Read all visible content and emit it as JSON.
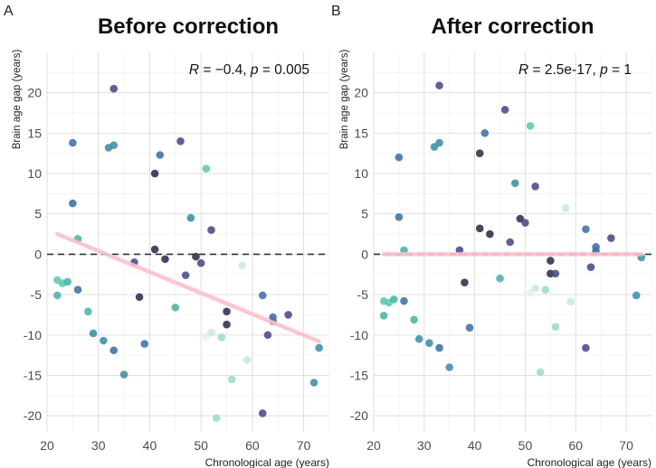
{
  "chart_data": [
    {
      "type": "scatter",
      "panel_label": "A",
      "title": "Before correction",
      "annotation": {
        "r_symbol": "R",
        "r_value": " = −0.4, ",
        "p_symbol": "p",
        "p_value": " = 0.005"
      },
      "xlabel": "Chronological age (years)",
      "ylabel": "Brain age gap (years)",
      "xlim": [
        20,
        75
      ],
      "ylim": [
        -22,
        25
      ],
      "xticks": [
        "20",
        "30",
        "40",
        "50",
        "60",
        "70"
      ],
      "yticks": [
        "-20",
        "-15",
        "-10",
        "-5",
        "0",
        "5",
        "10",
        "15",
        "20"
      ],
      "reference_line_y": 0,
      "fit_line": {
        "x": [
          22,
          73
        ],
        "y": [
          2.5,
          -10.8
        ],
        "color": "#f9c0cc"
      },
      "points": [
        {
          "x": 22,
          "y": -3.2,
          "color": "#5ec9b0"
        },
        {
          "x": 22,
          "y": -5.1,
          "color": "#4cb3a8"
        },
        {
          "x": 23,
          "y": -3.6,
          "color": "#5ec9b0"
        },
        {
          "x": 24,
          "y": -3.4,
          "color": "#4cb3a8"
        },
        {
          "x": 25,
          "y": 13.8,
          "color": "#3d6fa8"
        },
        {
          "x": 25,
          "y": 6.3,
          "color": "#3d6fa8"
        },
        {
          "x": 26,
          "y": 1.9,
          "color": "#4cb3a8"
        },
        {
          "x": 26,
          "y": -4.4,
          "color": "#3d6fa8"
        },
        {
          "x": 28,
          "y": -7.1,
          "color": "#4cb3a8"
        },
        {
          "x": 29,
          "y": -9.8,
          "color": "#3d8ea8"
        },
        {
          "x": 31,
          "y": -10.7,
          "color": "#3d8ea8"
        },
        {
          "x": 32,
          "y": 13.2,
          "color": "#3d8ea8"
        },
        {
          "x": 33,
          "y": 13.5,
          "color": "#3d8ea8"
        },
        {
          "x": 33,
          "y": 20.5,
          "color": "#4a4a8a"
        },
        {
          "x": 33,
          "y": -11.9,
          "color": "#3d6fa8"
        },
        {
          "x": 35,
          "y": -14.9,
          "color": "#3d8ea8"
        },
        {
          "x": 37,
          "y": -1.0,
          "color": "#4a4a8a"
        },
        {
          "x": 38,
          "y": -5.3,
          "color": "#2e2e4a"
        },
        {
          "x": 39,
          "y": -11.1,
          "color": "#3d6fa8"
        },
        {
          "x": 41,
          "y": 10.0,
          "color": "#2e2e4a"
        },
        {
          "x": 41,
          "y": 0.6,
          "color": "#2e2e4a"
        },
        {
          "x": 42,
          "y": 12.3,
          "color": "#3d6fa8"
        },
        {
          "x": 43,
          "y": -0.6,
          "color": "#2e2e4a"
        },
        {
          "x": 45,
          "y": -6.6,
          "color": "#4cb3a8"
        },
        {
          "x": 46,
          "y": 14.0,
          "color": "#4a4a8a"
        },
        {
          "x": 47,
          "y": -2.6,
          "color": "#4a4a8a"
        },
        {
          "x": 48,
          "y": 4.5,
          "color": "#3d8ea8"
        },
        {
          "x": 49,
          "y": -0.3,
          "color": "#2e2e4a"
        },
        {
          "x": 50,
          "y": -1.1,
          "color": "#4a4a8a"
        },
        {
          "x": 51,
          "y": 10.6,
          "color": "#5ec9b0"
        },
        {
          "x": 51,
          "y": -10.2,
          "color": "#e3f3e6"
        },
        {
          "x": 52,
          "y": 3.0,
          "color": "#4a4a8a"
        },
        {
          "x": 52,
          "y": -9.7,
          "color": "#c9ecdb"
        },
        {
          "x": 53,
          "y": -20.3,
          "color": "#9fdcc4"
        },
        {
          "x": 54,
          "y": -10.3,
          "color": "#9fdcc4"
        },
        {
          "x": 55,
          "y": -7.1,
          "color": "#2e2e4a"
        },
        {
          "x": 55,
          "y": -8.7,
          "color": "#2e2e4a"
        },
        {
          "x": 56,
          "y": -15.5,
          "color": "#9fdcc4"
        },
        {
          "x": 58,
          "y": -1.4,
          "color": "#c9ecdb"
        },
        {
          "x": 59,
          "y": -13.1,
          "color": "#c9ecdb"
        },
        {
          "x": 62,
          "y": -5.1,
          "color": "#3d6fa8"
        },
        {
          "x": 62,
          "y": -19.7,
          "color": "#4a4a8a"
        },
        {
          "x": 63,
          "y": -10.0,
          "color": "#4a4a8a"
        },
        {
          "x": 64,
          "y": -7.8,
          "color": "#3d6fa8"
        },
        {
          "x": 64,
          "y": -8.3,
          "color": "#3d6fa8"
        },
        {
          "x": 67,
          "y": -7.5,
          "color": "#4a4a8a"
        },
        {
          "x": 72,
          "y": -15.9,
          "color": "#3d8ea8"
        },
        {
          "x": 73,
          "y": -11.6,
          "color": "#3d8ea8"
        }
      ]
    },
    {
      "type": "scatter",
      "panel_label": "B",
      "title": "After correction",
      "annotation": {
        "r_symbol": "R",
        "r_value": " = 2.5e-17, ",
        "p_symbol": "p",
        "p_value": " = 1"
      },
      "xlabel": "Chronological age (years)",
      "ylabel": "Brain age gap (years)",
      "xlim": [
        20,
        75
      ],
      "ylim": [
        -22,
        25
      ],
      "xticks": [
        "20",
        "30",
        "40",
        "50",
        "60",
        "70"
      ],
      "yticks": [
        "-20",
        "-15",
        "-10",
        "-5",
        "0",
        "5",
        "10",
        "15",
        "20"
      ],
      "reference_line_y": 0,
      "fit_line": {
        "x": [
          22,
          73
        ],
        "y": [
          0,
          0
        ],
        "color": "#f9c0cc"
      },
      "points": [
        {
          "x": 22,
          "y": -5.8,
          "color": "#5ec9b0"
        },
        {
          "x": 22,
          "y": -7.6,
          "color": "#4cb3a8"
        },
        {
          "x": 23,
          "y": -6.0,
          "color": "#5ec9b0"
        },
        {
          "x": 24,
          "y": -5.6,
          "color": "#4cb3a8"
        },
        {
          "x": 25,
          "y": 12.0,
          "color": "#3d6fa8"
        },
        {
          "x": 25,
          "y": 4.6,
          "color": "#3d6fa8"
        },
        {
          "x": 26,
          "y": 0.5,
          "color": "#4cb3a8"
        },
        {
          "x": 26,
          "y": -5.8,
          "color": "#3d6fa8"
        },
        {
          "x": 28,
          "y": -8.1,
          "color": "#4cb3a8"
        },
        {
          "x": 29,
          "y": -10.5,
          "color": "#3d8ea8"
        },
        {
          "x": 31,
          "y": -11.0,
          "color": "#3d8ea8"
        },
        {
          "x": 32,
          "y": 13.3,
          "color": "#3d8ea8"
        },
        {
          "x": 33,
          "y": 13.8,
          "color": "#3d8ea8"
        },
        {
          "x": 33,
          "y": 20.9,
          "color": "#4a4a8a"
        },
        {
          "x": 33,
          "y": -11.6,
          "color": "#3d6fa8"
        },
        {
          "x": 35,
          "y": -14.0,
          "color": "#3d8ea8"
        },
        {
          "x": 37,
          "y": 0.5,
          "color": "#4a4a8a"
        },
        {
          "x": 38,
          "y": -3.5,
          "color": "#2e2e4a"
        },
        {
          "x": 39,
          "y": -9.1,
          "color": "#3d6fa8"
        },
        {
          "x": 41,
          "y": 12.5,
          "color": "#2e2e4a"
        },
        {
          "x": 41,
          "y": 3.2,
          "color": "#2e2e4a"
        },
        {
          "x": 42,
          "y": 15.0,
          "color": "#3d6fa8"
        },
        {
          "x": 43,
          "y": 2.5,
          "color": "#2e2e4a"
        },
        {
          "x": 45,
          "y": -3.0,
          "color": "#4cb3a8"
        },
        {
          "x": 46,
          "y": 17.9,
          "color": "#4a4a8a"
        },
        {
          "x": 47,
          "y": 1.5,
          "color": "#4a4a8a"
        },
        {
          "x": 48,
          "y": 8.8,
          "color": "#3d8ea8"
        },
        {
          "x": 49,
          "y": 4.4,
          "color": "#2e2e4a"
        },
        {
          "x": 50,
          "y": 3.9,
          "color": "#4a4a8a"
        },
        {
          "x": 51,
          "y": 15.9,
          "color": "#5ec9b0"
        },
        {
          "x": 51,
          "y": -4.8,
          "color": "#e3f3e6"
        },
        {
          "x": 52,
          "y": 8.4,
          "color": "#4a4a8a"
        },
        {
          "x": 52,
          "y": -4.2,
          "color": "#c9ecdb"
        },
        {
          "x": 53,
          "y": -14.6,
          "color": "#9fdcc4"
        },
        {
          "x": 54,
          "y": -4.4,
          "color": "#9fdcc4"
        },
        {
          "x": 55,
          "y": -0.8,
          "color": "#2e2e4a"
        },
        {
          "x": 55,
          "y": -2.4,
          "color": "#2e2e4a"
        },
        {
          "x": 56,
          "y": -9.0,
          "color": "#9fdcc4"
        },
        {
          "x": 58,
          "y": 5.7,
          "color": "#c9ecdb"
        },
        {
          "x": 59,
          "y": -5.9,
          "color": "#c9ecdb"
        },
        {
          "x": 56,
          "y": -2.4,
          "color": "#4a4a8a"
        },
        {
          "x": 62,
          "y": 3.1,
          "color": "#3d6fa8"
        },
        {
          "x": 62,
          "y": -11.6,
          "color": "#4a4a8a"
        },
        {
          "x": 63,
          "y": -1.6,
          "color": "#4a4a8a"
        },
        {
          "x": 64,
          "y": 0.9,
          "color": "#3d6fa8"
        },
        {
          "x": 64,
          "y": 0.4,
          "color": "#3d6fa8"
        },
        {
          "x": 67,
          "y": 2.0,
          "color": "#4a4a8a"
        },
        {
          "x": 72,
          "y": -5.1,
          "color": "#3d8ea8"
        },
        {
          "x": 73,
          "y": -0.4,
          "color": "#3d8ea8"
        }
      ]
    }
  ]
}
